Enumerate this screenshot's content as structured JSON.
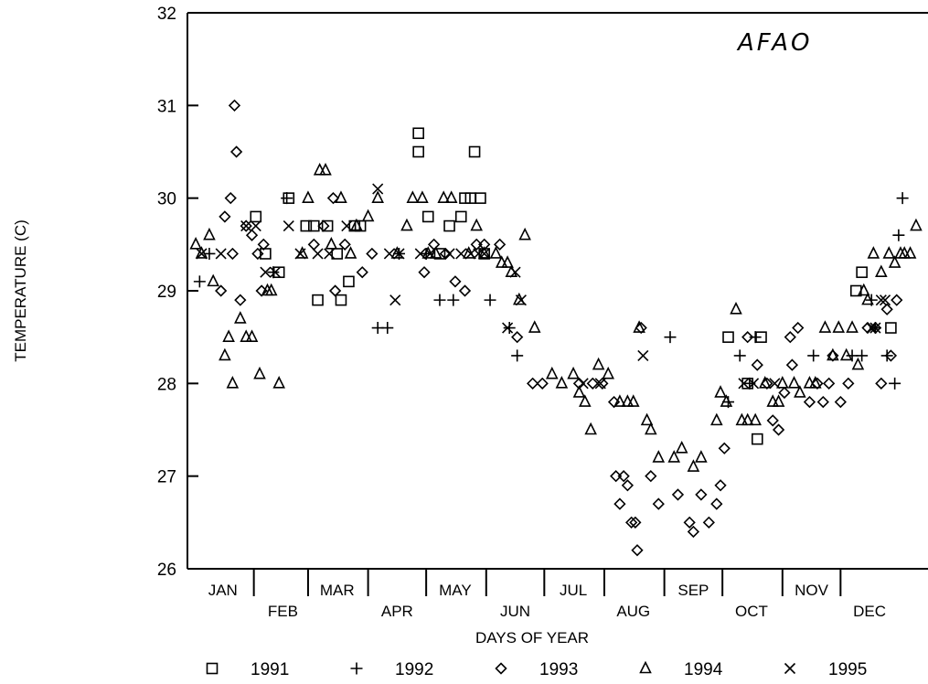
{
  "chart_data": {
    "type": "scatter",
    "annotation": "AFAO",
    "ylabel": "TEMPERATURE (C)",
    "xlabel": "DAYS OF YEAR",
    "ylim": [
      26,
      32
    ],
    "yticks": [
      26,
      27,
      28,
      29,
      30,
      31,
      32
    ],
    "xlim": [
      0,
      365
    ],
    "grid": false,
    "legend_position": "bottom",
    "months_upper": [
      {
        "label": "JAN",
        "day": 15
      },
      {
        "label": "MAR",
        "day": 74
      },
      {
        "label": "MAY",
        "day": 135
      },
      {
        "label": "JUL",
        "day": 196
      },
      {
        "label": "SEP",
        "day": 258
      },
      {
        "label": "NOV",
        "day": 319
      }
    ],
    "months_lower": [
      {
        "label": "FEB",
        "day": 46
      },
      {
        "label": "APR",
        "day": 105
      },
      {
        "label": "JUN",
        "day": 166
      },
      {
        "label": "AUG",
        "day": 227
      },
      {
        "label": "OCT",
        "day": 288
      },
      {
        "label": "DEC",
        "day": 349
      }
    ],
    "month_boundaries": [
      31,
      59,
      90,
      120,
      151,
      181,
      212,
      243,
      273,
      304,
      334
    ],
    "series": [
      {
        "name": "1991",
        "marker": "square",
        "points": [
          [
            32,
            29.8
          ],
          [
            37,
            29.4
          ],
          [
            44,
            29.2
          ],
          [
            49,
            30.0
          ],
          [
            58,
            29.7
          ],
          [
            62,
            29.7
          ],
          [
            64,
            28.9
          ],
          [
            69,
            29.7
          ],
          [
            74,
            29.4
          ],
          [
            76,
            28.9
          ],
          [
            80,
            29.1
          ],
          [
            83,
            29.7
          ],
          [
            86,
            29.7
          ],
          [
            116,
            30.7
          ],
          [
            116,
            30.5
          ],
          [
            121,
            29.8
          ],
          [
            127,
            29.4
          ],
          [
            132,
            29.7
          ],
          [
            138,
            29.8
          ],
          [
            140,
            30.0
          ],
          [
            143,
            30.0
          ],
          [
            145,
            30.5
          ],
          [
            148,
            30.0
          ],
          [
            150,
            29.4
          ],
          [
            276,
            28.5
          ],
          [
            286,
            28.0
          ],
          [
            291,
            27.4
          ],
          [
            293,
            28.5
          ],
          [
            342,
            29.0
          ],
          [
            345,
            29.2
          ],
          [
            360,
            28.6
          ]
        ]
      },
      {
        "name": "1992",
        "marker": "plus",
        "points": [
          [
            3,
            29.1
          ],
          [
            8,
            29.4
          ],
          [
            41,
            29.2
          ],
          [
            48,
            30.0
          ],
          [
            95,
            28.6
          ],
          [
            100,
            28.6
          ],
          [
            106,
            29.4
          ],
          [
            120,
            29.4
          ],
          [
            127,
            28.9
          ],
          [
            134,
            28.9
          ],
          [
            153,
            28.9
          ],
          [
            163,
            28.6
          ],
          [
            167,
            28.3
          ],
          [
            246,
            28.5
          ],
          [
            276,
            27.8
          ],
          [
            282,
            28.3
          ],
          [
            287,
            28.0
          ],
          [
            290,
            28.5
          ],
          [
            320,
            28.3
          ],
          [
            340,
            28.3
          ],
          [
            345,
            28.3
          ],
          [
            350,
            28.9
          ],
          [
            352,
            28.6
          ],
          [
            358,
            28.3
          ],
          [
            362,
            28.0
          ],
          [
            364,
            29.6
          ],
          [
            366,
            30.0
          ]
        ]
      },
      {
        "name": "1993",
        "marker": "diamond",
        "points": [
          [
            21,
            31.0
          ],
          [
            22,
            30.5
          ],
          [
            19,
            30.0
          ],
          [
            16,
            29.8
          ],
          [
            27,
            29.7
          ],
          [
            30,
            29.6
          ],
          [
            33,
            29.4
          ],
          [
            36,
            29.5
          ],
          [
            35,
            29.0
          ],
          [
            24,
            28.9
          ],
          [
            20,
            29.4
          ],
          [
            14,
            29.0
          ],
          [
            62,
            29.5
          ],
          [
            67,
            29.7
          ],
          [
            72,
            30.0
          ],
          [
            78,
            29.5
          ],
          [
            73,
            29.0
          ],
          [
            87,
            29.2
          ],
          [
            92,
            29.4
          ],
          [
            119,
            29.2
          ],
          [
            124,
            29.5
          ],
          [
            130,
            29.4
          ],
          [
            135,
            29.1
          ],
          [
            140,
            29.0
          ],
          [
            146,
            29.5
          ],
          [
            150,
            29.5
          ],
          [
            158,
            29.5
          ],
          [
            167,
            28.5
          ],
          [
            175,
            28.0
          ],
          [
            180,
            28.0
          ],
          [
            199,
            28.0
          ],
          [
            206,
            28.0
          ],
          [
            211,
            28.0
          ],
          [
            217,
            27.8
          ],
          [
            218,
            27.0
          ],
          [
            220,
            26.7
          ],
          [
            222,
            27.0
          ],
          [
            224,
            26.9
          ],
          [
            226,
            26.5
          ],
          [
            228,
            26.5
          ],
          [
            229,
            26.2
          ],
          [
            231,
            28.6
          ],
          [
            236,
            27.0
          ],
          [
            240,
            26.7
          ],
          [
            250,
            26.8
          ],
          [
            256,
            26.5
          ],
          [
            258,
            26.4
          ],
          [
            262,
            26.8
          ],
          [
            266,
            26.5
          ],
          [
            270,
            26.7
          ],
          [
            272,
            26.9
          ],
          [
            274,
            27.3
          ],
          [
            286,
            28.5
          ],
          [
            291,
            28.2
          ],
          [
            296,
            28.0
          ],
          [
            299,
            27.6
          ],
          [
            302,
            27.5
          ],
          [
            305,
            27.9
          ],
          [
            308,
            28.5
          ],
          [
            309,
            28.2
          ],
          [
            312,
            28.6
          ],
          [
            318,
            27.8
          ],
          [
            322,
            28.0
          ],
          [
            325,
            27.8
          ],
          [
            328,
            28.0
          ],
          [
            330,
            28.3
          ],
          [
            334,
            27.8
          ],
          [
            338,
            28.0
          ],
          [
            348,
            28.6
          ],
          [
            352,
            28.6
          ],
          [
            355,
            28.0
          ],
          [
            358,
            28.8
          ],
          [
            360,
            28.3
          ],
          [
            363,
            28.9
          ]
        ]
      },
      {
        "name": "1994",
        "marker": "triangle",
        "points": [
          [
            1,
            29.5
          ],
          [
            4,
            29.4
          ],
          [
            8,
            29.6
          ],
          [
            10,
            29.1
          ],
          [
            16,
            28.3
          ],
          [
            18,
            28.5
          ],
          [
            20,
            28.0
          ],
          [
            24,
            28.7
          ],
          [
            27,
            28.5
          ],
          [
            30,
            28.5
          ],
          [
            34,
            28.1
          ],
          [
            38,
            29.0
          ],
          [
            40,
            29.0
          ],
          [
            44,
            28.0
          ],
          [
            56,
            29.4
          ],
          [
            59,
            30.0
          ],
          [
            65,
            30.3
          ],
          [
            68,
            30.3
          ],
          [
            71,
            29.5
          ],
          [
            76,
            30.0
          ],
          [
            81,
            29.4
          ],
          [
            84,
            29.7
          ],
          [
            90,
            29.8
          ],
          [
            95,
            30.0
          ],
          [
            105,
            29.4
          ],
          [
            110,
            29.7
          ],
          [
            113,
            30.0
          ],
          [
            118,
            30.0
          ],
          [
            121,
            29.4
          ],
          [
            125,
            29.4
          ],
          [
            129,
            30.0
          ],
          [
            133,
            30.0
          ],
          [
            142,
            29.4
          ],
          [
            146,
            29.7
          ],
          [
            150,
            29.4
          ],
          [
            156,
            29.4
          ],
          [
            159,
            29.3
          ],
          [
            162,
            29.3
          ],
          [
            164,
            29.2
          ],
          [
            168,
            28.9
          ],
          [
            171,
            29.6
          ],
          [
            176,
            28.6
          ],
          [
            185,
            28.1
          ],
          [
            190,
            28.0
          ],
          [
            196,
            28.1
          ],
          [
            199,
            27.9
          ],
          [
            202,
            27.8
          ],
          [
            205,
            27.5
          ],
          [
            209,
            28.2
          ],
          [
            214,
            28.1
          ],
          [
            220,
            27.8
          ],
          [
            224,
            27.8
          ],
          [
            227,
            27.8
          ],
          [
            230,
            28.6
          ],
          [
            234,
            27.6
          ],
          [
            236,
            27.5
          ],
          [
            240,
            27.2
          ],
          [
            248,
            27.2
          ],
          [
            252,
            27.3
          ],
          [
            258,
            27.1
          ],
          [
            262,
            27.2
          ],
          [
            270,
            27.6
          ],
          [
            272,
            27.9
          ],
          [
            275,
            27.8
          ],
          [
            280,
            28.8
          ],
          [
            283,
            27.6
          ],
          [
            286,
            27.6
          ],
          [
            290,
            27.6
          ],
          [
            295,
            28.0
          ],
          [
            299,
            27.8
          ],
          [
            302,
            27.8
          ],
          [
            304,
            28.0
          ],
          [
            310,
            28.0
          ],
          [
            313,
            27.9
          ],
          [
            318,
            28.0
          ],
          [
            321,
            28.0
          ],
          [
            326,
            28.6
          ],
          [
            330,
            28.3
          ],
          [
            333,
            28.6
          ],
          [
            337,
            28.3
          ],
          [
            340,
            28.6
          ],
          [
            343,
            28.2
          ],
          [
            346,
            29.0
          ],
          [
            348,
            28.9
          ],
          [
            351,
            29.4
          ],
          [
            355,
            29.2
          ],
          [
            359,
            29.4
          ],
          [
            362,
            29.3
          ],
          [
            365,
            29.4
          ],
          [
            367,
            29.4
          ],
          [
            370,
            29.4
          ],
          [
            373,
            29.7
          ]
        ]
      },
      {
        "name": "1995",
        "marker": "x",
        "points": [
          [
            4,
            29.4
          ],
          [
            14,
            29.4
          ],
          [
            27,
            29.7
          ],
          [
            32,
            29.7
          ],
          [
            37,
            29.2
          ],
          [
            42,
            29.2
          ],
          [
            49,
            29.7
          ],
          [
            55,
            29.4
          ],
          [
            64,
            29.4
          ],
          [
            70,
            29.4
          ],
          [
            79,
            29.7
          ],
          [
            95,
            30.1
          ],
          [
            101,
            29.4
          ],
          [
            104,
            28.9
          ],
          [
            106,
            29.4
          ],
          [
            117,
            29.4
          ],
          [
            122,
            29.4
          ],
          [
            132,
            29.4
          ],
          [
            138,
            29.4
          ],
          [
            143,
            29.4
          ],
          [
            147,
            29.4
          ],
          [
            150,
            29.4
          ],
          [
            162,
            28.6
          ],
          [
            166,
            29.2
          ],
          [
            169,
            28.9
          ],
          [
            201,
            28.0
          ],
          [
            210,
            28.0
          ],
          [
            232,
            28.3
          ],
          [
            284,
            28.0
          ],
          [
            289,
            28.0
          ],
          [
            300,
            28.0
          ],
          [
            350,
            28.6
          ],
          [
            352,
            28.6
          ],
          [
            355,
            28.9
          ],
          [
            357,
            28.9
          ]
        ]
      }
    ]
  }
}
